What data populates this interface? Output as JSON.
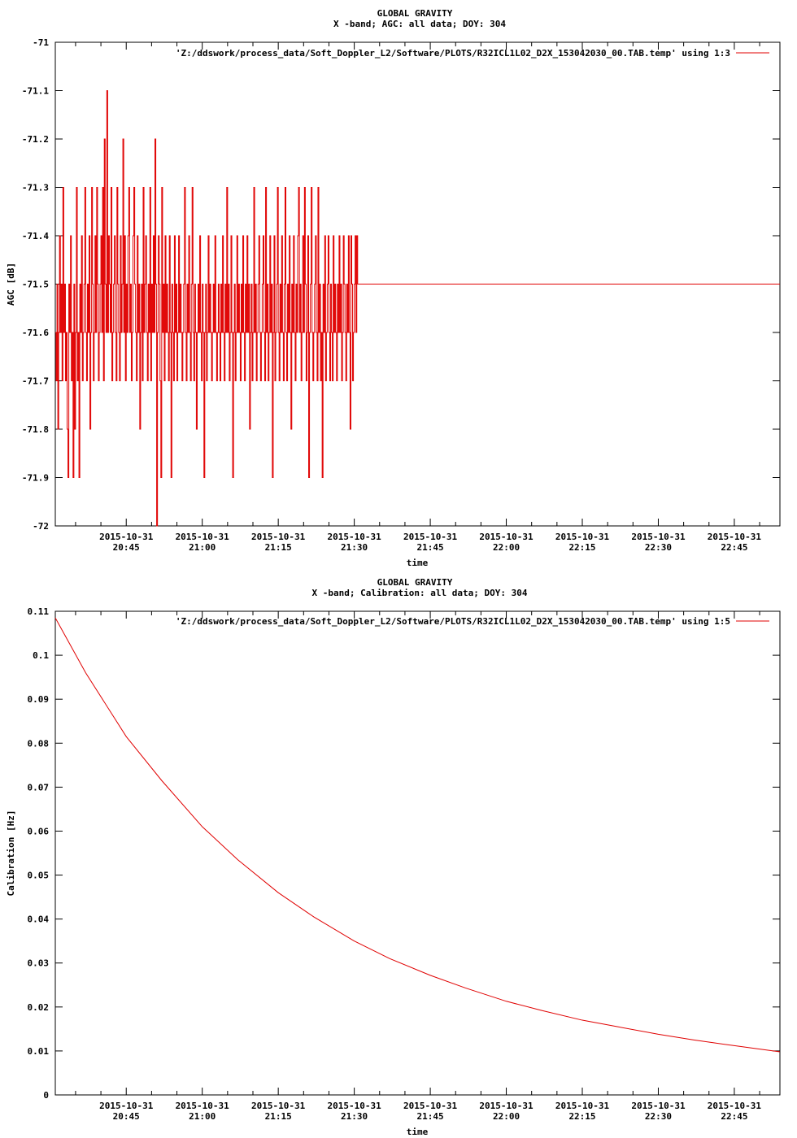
{
  "chart_data": [
    {
      "type": "line",
      "title": "GLOBAL GRAVITY",
      "subtitle": "X -band; AGC: all data; DOY: 304",
      "xlabel": "time",
      "ylabel": "AGC [dB]",
      "ylim": [
        -72,
        -71
      ],
      "y_ticks": [
        "-71",
        "-71.1",
        "-71.2",
        "-71.3",
        "-71.4",
        "-71.5",
        "-71.6",
        "-71.7",
        "-71.8",
        "-71.9",
        "-72"
      ],
      "x_range_minutes": [
        20.5,
        20.75,
        22.93
      ],
      "x_tick_dates": [
        "2015-10-31",
        "2015-10-31",
        "2015-10-31",
        "2015-10-31",
        "2015-10-31",
        "2015-10-31",
        "2015-10-31",
        "2015-10-31",
        "2015-10-31"
      ],
      "x_tick_times": [
        "20:45",
        "21:00",
        "21:15",
        "21:30",
        "21:45",
        "22:00",
        "22:15",
        "22:30",
        "22:45"
      ],
      "x_start": "2015-10-31 20:31",
      "x_end": "2015-10-31 22:54",
      "grid": false,
      "legend_position": "top-right",
      "series": [
        {
          "name": "'Z:/ddswork/process_data/Soft_Doppler_L2/Software/PLOTS/R32ICL1L02_D2X_153042030_00.TAB.temp' using 1:3",
          "color": "#e00000",
          "x_start": "20:31:00",
          "x_step_seconds": 10,
          "baseline": -71.6,
          "values": [
            -71.6,
            -71.7,
            -71.5,
            -71.8,
            -71.6,
            -71.4,
            -71.6,
            -71.5,
            -71.7,
            -71.3,
            -71.6,
            -71.5,
            -71.7,
            -71.6,
            -71.8,
            -71.9,
            -71.5,
            -71.6,
            -71.4,
            -71.7,
            -71.6,
            -71.9,
            -71.5,
            -71.8,
            -71.6,
            -71.3,
            -71.7,
            -71.6,
            -71.9,
            -71.5,
            -71.6,
            -71.4,
            -71.7,
            -71.6,
            -71.5,
            -71.3,
            -71.6,
            -71.7,
            -71.5,
            -71.6,
            -71.4,
            -71.8,
            -71.6,
            -71.3,
            -71.5,
            -71.7,
            -71.6,
            -71.4,
            -71.6,
            -71.3,
            -71.5,
            -71.7,
            -71.6,
            -71.5,
            -71.4,
            -71.6,
            -71.3,
            -71.7,
            -71.2,
            -71.5,
            -71.6,
            -71.1,
            -71.6,
            -71.4,
            -71.5,
            -71.6,
            -71.3,
            -71.7,
            -71.6,
            -71.5,
            -71.4,
            -71.6,
            -71.7,
            -71.3,
            -71.5,
            -71.6,
            -71.7,
            -71.4,
            -71.6,
            -71.5,
            -71.2,
            -71.6,
            -71.4,
            -71.7,
            -71.5,
            -71.6,
            -71.4,
            -71.3,
            -71.6,
            -71.5,
            -71.7,
            -71.6,
            -71.4,
            -71.3,
            -71.5,
            -71.6,
            -71.7,
            -71.4,
            -71.6,
            -71.5,
            -71.8,
            -71.6,
            -71.5,
            -71.7,
            -71.3,
            -71.6,
            -71.5,
            -71.4,
            -71.6,
            -71.7,
            -71.5,
            -71.6,
            -71.3,
            -71.7,
            -71.5,
            -71.6,
            -71.4,
            -71.6,
            -71.2,
            -71.5,
            -72.0,
            -71.6,
            -71.4,
            -71.5,
            -71.7,
            -71.9,
            -71.3,
            -71.6,
            -71.5,
            -71.7,
            -71.4,
            -71.6,
            -71.5,
            -71.6,
            -71.7,
            -71.4,
            -71.6,
            -71.9,
            -71.5,
            -71.6,
            -71.7,
            -71.4,
            -71.6,
            -71.5,
            -71.7,
            -71.6,
            -71.4,
            -71.6,
            -71.5,
            -71.6,
            -71.7,
            -71.6,
            -71.5,
            -71.3,
            -71.6,
            -71.7,
            -71.5,
            -71.6,
            -71.4,
            -71.6,
            -71.7,
            -71.5,
            -71.3,
            -71.6,
            -71.7,
            -71.5,
            -71.6,
            -71.8,
            -71.6,
            -71.5,
            -71.6,
            -71.4,
            -71.6,
            -71.7,
            -71.5,
            -71.6,
            -71.9,
            -71.6,
            -71.5,
            -71.7,
            -71.6,
            -71.4,
            -71.6,
            -71.5,
            -71.6,
            -71.7,
            -71.6,
            -71.5,
            -71.6,
            -71.4,
            -71.6,
            -71.7,
            -71.6,
            -71.5,
            -71.6,
            -71.7,
            -71.5,
            -71.6,
            -71.4,
            -71.6,
            -71.7,
            -71.5,
            -71.6,
            -71.3,
            -71.6,
            -71.5,
            -71.7,
            -71.6,
            -71.4,
            -71.6,
            -71.9,
            -71.6,
            -71.5,
            -71.7,
            -71.6,
            -71.4,
            -71.6,
            -71.5,
            -71.6,
            -71.7,
            -71.5,
            -71.6,
            -71.4,
            -71.6,
            -71.7,
            -71.5,
            -71.6,
            -71.4,
            -71.6,
            -71.5,
            -71.8,
            -71.6,
            -71.5,
            -71.7,
            -71.6,
            -71.3,
            -71.6,
            -71.5,
            -71.7,
            -71.6,
            -71.5,
            -71.4,
            -71.6,
            -71.7,
            -71.6,
            -71.5,
            -71.4,
            -71.6,
            -71.7,
            -71.3,
            -71.6,
            -71.5,
            -71.7,
            -71.6,
            -71.4,
            -71.6,
            -71.5,
            -71.9,
            -71.6,
            -71.4,
            -71.7,
            -71.6,
            -71.5,
            -71.3,
            -71.6,
            -71.7,
            -71.5,
            -71.6,
            -71.4,
            -71.6,
            -71.7,
            -71.5,
            -71.3,
            -71.6,
            -71.7,
            -71.5,
            -71.6,
            -71.4,
            -71.6,
            -71.8,
            -71.5,
            -71.6,
            -71.4,
            -71.6,
            -71.7,
            -71.5,
            -71.6,
            -71.4,
            -71.3,
            -71.6,
            -71.5,
            -71.7,
            -71.6,
            -71.4,
            -71.6,
            -71.3,
            -71.5,
            -71.7,
            -71.6,
            -71.4,
            -71.9,
            -71.6,
            -71.5,
            -71.3,
            -71.6,
            -71.7,
            -71.6,
            -71.5,
            -71.4,
            -71.6,
            -71.7,
            -71.3,
            -71.6,
            -71.5,
            -71.7,
            -71.6,
            -71.9,
            -71.5,
            -71.6,
            -71.4,
            -71.7,
            -71.6,
            -71.5,
            -71.4,
            -71.6,
            -71.7,
            -71.5,
            -71.6,
            -71.7,
            -71.4,
            -71.6,
            -71.5,
            -71.6,
            -71.7,
            -71.5,
            -71.6,
            -71.4,
            -71.6,
            -71.5,
            -71.7,
            -71.6,
            -71.4,
            -71.5,
            -71.6,
            -71.7,
            -71.5,
            -71.6,
            -71.4,
            -71.6,
            -71.8,
            -71.4,
            -71.5,
            -71.7,
            -71.6,
            -71.5,
            -71.4,
            -71.6,
            -71.4,
            -71.5
          ]
        }
      ]
    },
    {
      "type": "line",
      "title": "GLOBAL GRAVITY",
      "subtitle": "X -band; Calibration: all data; DOY: 304",
      "xlabel": "time",
      "ylabel": "Calibration [Hz]",
      "ylim": [
        0,
        0.11
      ],
      "y_ticks": [
        "0.11",
        "0.1",
        "0.09",
        "0.08",
        "0.07",
        "0.06",
        "0.05",
        "0.04",
        "0.03",
        "0.02",
        "0.01",
        "0"
      ],
      "x_tick_dates": [
        "2015-10-31",
        "2015-10-31",
        "2015-10-31",
        "2015-10-31",
        "2015-10-31",
        "2015-10-31",
        "2015-10-31",
        "2015-10-31",
        "2015-10-31"
      ],
      "x_tick_times": [
        "20:45",
        "21:00",
        "21:15",
        "21:30",
        "21:45",
        "22:00",
        "22:15",
        "22:30",
        "22:45"
      ],
      "x_start": "2015-10-31 20:31",
      "x_end": "2015-10-31 22:54",
      "grid": false,
      "legend_position": "top-right",
      "series": [
        {
          "name": "'Z:/ddswork/process_data/Soft_Doppler_L2/Software/PLOTS/R32ICL1L02_D2X_153042030_00.TAB.temp' using 1:5",
          "color": "#e00000",
          "points": [
            [
              "20:31",
              0.1085
            ],
            [
              "20:37",
              0.096
            ],
            [
              "20:45",
              0.0815
            ],
            [
              "20:52",
              0.0715
            ],
            [
              "21:00",
              0.061
            ],
            [
              "21:07",
              0.0535
            ],
            [
              "21:15",
              0.046
            ],
            [
              "21:22",
              0.0405
            ],
            [
              "21:30",
              0.035
            ],
            [
              "21:37",
              0.031
            ],
            [
              "21:45",
              0.0272
            ],
            [
              "21:52",
              0.0243
            ],
            [
              "22:00",
              0.0213
            ],
            [
              "22:07",
              0.0192
            ],
            [
              "22:15",
              0.017
            ],
            [
              "22:22",
              0.0155
            ],
            [
              "22:30",
              0.0138
            ],
            [
              "22:37",
              0.0125
            ],
            [
              "22:45",
              0.0112
            ],
            [
              "22:54",
              0.0098
            ]
          ]
        }
      ]
    }
  ]
}
